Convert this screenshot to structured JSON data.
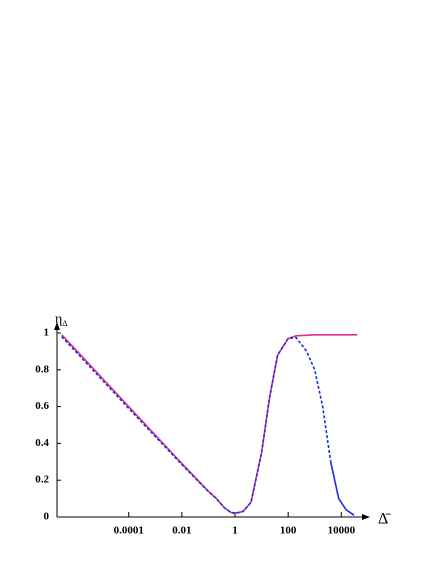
{
  "chart_data": {
    "type": "line",
    "ylabel": "η",
    "ylabel_subscript": "Δ",
    "xlabel": "Δ̄",
    "xscale": "log",
    "xlim": [
      2e-07,
      60000
    ],
    "ylim": [
      0,
      1
    ],
    "xticks": [
      0.0001,
      0.01,
      1,
      100,
      10000
    ],
    "yticks": [
      0,
      0.2,
      0.4,
      0.6,
      0.8,
      1
    ],
    "series": [
      {
        "color": "#e2308c",
        "dash": false,
        "x": [
          3e-07,
          1e-06,
          0.0001,
          0.01,
          0.1,
          0.2,
          0.4,
          0.7,
          1,
          2,
          4,
          10,
          20,
          40,
          100,
          200,
          1000,
          40000
        ],
        "values": [
          0.99,
          0.91,
          0.6,
          0.29,
          0.14,
          0.1,
          0.05,
          0.025,
          0.02,
          0.03,
          0.08,
          0.35,
          0.65,
          0.88,
          0.97,
          0.985,
          0.99,
          0.99
        ]
      },
      {
        "color": "#1a2ee0",
        "dash": true,
        "x": [
          3e-07,
          1e-06,
          0.0001,
          0.01,
          0.1,
          0.2,
          0.4,
          0.7,
          1,
          2,
          4,
          10,
          20,
          40,
          100,
          200,
          500,
          1000,
          2000,
          4000
        ],
        "values": [
          0.98,
          0.9,
          0.59,
          0.285,
          0.138,
          0.1,
          0.05,
          0.025,
          0.02,
          0.03,
          0.08,
          0.35,
          0.65,
          0.88,
          0.97,
          0.975,
          0.9,
          0.8,
          0.6,
          0.3
        ]
      },
      {
        "color": "#1a2ee0",
        "dash": false,
        "x": [
          4000,
          8000,
          15000,
          30000
        ],
        "values": [
          0.3,
          0.1,
          0.04,
          0.01
        ]
      }
    ]
  }
}
